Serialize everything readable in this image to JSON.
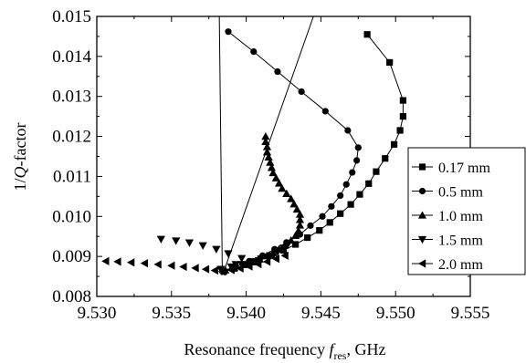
{
  "chart_data": {
    "type": "scatter",
    "title": "",
    "xlabel": {
      "prefix": "Resonance frequency ",
      "var": "f",
      "sub": "res",
      "suffix": ", GHz"
    },
    "ylabel": {
      "prefix": "1/",
      "var": "Q",
      "suffix": "-factor"
    },
    "xlim": [
      9.53,
      9.555
    ],
    "ylim": [
      0.008,
      0.015
    ],
    "x_ticks": [
      "9.530",
      "9.535",
      "9.540",
      "9.545",
      "9.550",
      "9.555"
    ],
    "y_ticks": [
      "0.008",
      "0.009",
      "0.010",
      "0.011",
      "0.012",
      "0.013",
      "0.014",
      "0.015"
    ],
    "grid": false,
    "legend_position": "right",
    "series": [
      {
        "name": "0.17 mm",
        "marker": "square",
        "line_from": [
          9.5445,
          0.015
        ],
        "points": [
          [
            9.5385,
            0.00862
          ],
          [
            9.5392,
            0.0087
          ],
          [
            9.54,
            0.0088
          ],
          [
            9.5408,
            0.0089
          ],
          [
            9.5417,
            0.00902
          ],
          [
            9.5425,
            0.00915
          ],
          [
            9.5433,
            0.0093
          ],
          [
            9.5441,
            0.00947
          ],
          [
            9.5449,
            0.00965
          ],
          [
            9.5456,
            0.00985
          ],
          [
            9.5463,
            0.01007
          ],
          [
            9.547,
            0.0103
          ],
          [
            9.5476,
            0.01055
          ],
          [
            9.5482,
            0.01082
          ],
          [
            9.5487,
            0.01112
          ],
          [
            9.5493,
            0.01145
          ],
          [
            9.5499,
            0.0118
          ],
          [
            9.5503,
            0.01215
          ],
          [
            9.5505,
            0.0125
          ],
          [
            9.5505,
            0.0129
          ],
          [
            9.5496,
            0.01385
          ],
          [
            9.5481,
            0.01455
          ]
        ]
      },
      {
        "name": "0.5 mm",
        "marker": "circle",
        "line_from": [
          9.5382,
          0.015
        ],
        "points": [
          [
            9.5384,
            0.00863
          ],
          [
            9.5393,
            0.00875
          ],
          [
            9.5402,
            0.00888
          ],
          [
            9.5411,
            0.00902
          ],
          [
            9.5419,
            0.00918
          ],
          [
            9.5427,
            0.00935
          ],
          [
            9.5436,
            0.00955
          ],
          [
            9.5443,
            0.00977
          ],
          [
            9.5451,
            0.01
          ],
          [
            9.5457,
            0.01025
          ],
          [
            9.5463,
            0.01052
          ],
          [
            9.5467,
            0.0108
          ],
          [
            9.5471,
            0.0111
          ],
          [
            9.5474,
            0.0114
          ],
          [
            9.5475,
            0.01172
          ],
          [
            9.5468,
            0.01215
          ],
          [
            9.5453,
            0.01263
          ],
          [
            9.5437,
            0.01312
          ],
          [
            9.5421,
            0.01362
          ],
          [
            9.5405,
            0.01412
          ],
          [
            9.5388,
            0.01462
          ]
        ]
      },
      {
        "name": "1.0 mm",
        "marker": "triangle-up",
        "line_from": null,
        "points": [
          [
            9.5386,
            0.00866
          ],
          [
            9.5392,
            0.00872
          ],
          [
            9.5398,
            0.00879
          ],
          [
            9.5404,
            0.00886
          ],
          [
            9.5409,
            0.00893
          ],
          [
            9.5414,
            0.00901
          ],
          [
            9.5418,
            0.00909
          ],
          [
            9.5422,
            0.00918
          ],
          [
            9.5426,
            0.00928
          ],
          [
            9.543,
            0.0094
          ],
          [
            9.5433,
            0.00952
          ],
          [
            9.5435,
            0.00964
          ],
          [
            9.5436,
            0.00978
          ],
          [
            9.5436,
            0.00992
          ],
          [
            9.5436,
            0.01005
          ],
          [
            9.5434,
            0.01018
          ],
          [
            9.5432,
            0.01031
          ],
          [
            9.543,
            0.01044
          ],
          [
            9.5427,
            0.01057
          ],
          [
            9.5424,
            0.0107
          ],
          [
            9.5422,
            0.01083
          ],
          [
            9.542,
            0.01096
          ],
          [
            9.5418,
            0.01109
          ],
          [
            9.5417,
            0.01122
          ],
          [
            9.5416,
            0.01135
          ],
          [
            9.5415,
            0.01148
          ],
          [
            9.5414,
            0.01161
          ],
          [
            9.5414,
            0.01174
          ],
          [
            9.5413,
            0.01187
          ],
          [
            9.5413,
            0.012
          ]
        ]
      },
      {
        "name": "1.5 mm",
        "marker": "triangle-down",
        "line_from": null,
        "points": [
          [
            9.5383,
            0.00868
          ],
          [
            9.539,
            0.00874
          ],
          [
            9.5397,
            0.0088
          ],
          [
            9.5404,
            0.00887
          ],
          [
            9.541,
            0.00894
          ],
          [
            9.5416,
            0.00902
          ],
          [
            9.5421,
            0.00911
          ],
          [
            9.5425,
            0.00921
          ],
          [
            9.5428,
            0.00931
          ],
          [
            9.5403,
            0.0088
          ],
          [
            9.5393,
            0.0088
          ],
          [
            9.5397,
            0.00895
          ],
          [
            9.5388,
            0.00907
          ],
          [
            9.538,
            0.00918
          ],
          [
            9.5371,
            0.00927
          ],
          [
            9.5362,
            0.00934
          ],
          [
            9.5353,
            0.00939
          ],
          [
            9.5343,
            0.00943
          ]
        ]
      },
      {
        "name": "2.0 mm",
        "marker": "triangle-left",
        "line_from": null,
        "points": [
          [
            9.5384,
            0.00862
          ],
          [
            9.5379,
            0.00865
          ],
          [
            9.5373,
            0.00868
          ],
          [
            9.5366,
            0.00871
          ],
          [
            9.5358,
            0.00874
          ],
          [
            9.535,
            0.00877
          ],
          [
            9.5341,
            0.0088
          ],
          [
            9.5332,
            0.00883
          ],
          [
            9.5323,
            0.00885
          ],
          [
            9.5314,
            0.00887
          ],
          [
            9.5306,
            0.00888
          ],
          [
            9.539,
            0.00866
          ],
          [
            9.5396,
            0.0087
          ],
          [
            9.5402,
            0.00875
          ],
          [
            9.5408,
            0.00881
          ],
          [
            9.5414,
            0.00887
          ],
          [
            9.542,
            0.00894
          ],
          [
            9.5426,
            0.00902
          ]
        ]
      }
    ]
  }
}
